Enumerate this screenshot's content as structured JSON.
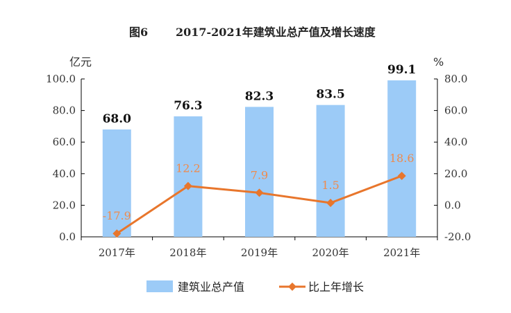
{
  "colors": {
    "bar": "#9CCBF7",
    "line": "#E8762C",
    "line_label": "#F08A4B",
    "axis": "#000000"
  },
  "chart_data": {
    "type": "bar",
    "title_fig": "图6",
    "title": "2017-2021年建筑业总产值及增长速度",
    "categories": [
      "2017年",
      "2018年",
      "2019年",
      "2020年",
      "2021年"
    ],
    "left_axis": {
      "unit": "亿元",
      "ylim": [
        0,
        100
      ],
      "ticks": [
        "100.0",
        "80.0",
        "60.0",
        "40.0",
        "20.0",
        "0.0"
      ],
      "tick_values": [
        100,
        80,
        60,
        40,
        20,
        0
      ]
    },
    "right_axis": {
      "unit": "%",
      "ylim": [
        -20,
        80
      ],
      "ticks": [
        "80.0",
        "60.0",
        "40.0",
        "20.0",
        "0.0",
        "-20.0"
      ],
      "tick_values": [
        80,
        60,
        40,
        20,
        0,
        -20
      ]
    },
    "series": [
      {
        "name": "建筑业总产值",
        "type": "bar",
        "axis": "left",
        "values": [
          68.0,
          76.3,
          82.3,
          83.5,
          99.1
        ],
        "labels": [
          "68.0",
          "76.3",
          "82.3",
          "83.5",
          "99.1"
        ]
      },
      {
        "name": "比上年增长",
        "type": "line",
        "axis": "right",
        "marker": "diamond",
        "values": [
          -17.9,
          12.2,
          7.9,
          1.5,
          18.6
        ],
        "labels": [
          "-17.9",
          "12.2",
          "7.9",
          "1.5",
          "18.6"
        ]
      }
    ],
    "grid": false,
    "legend_position": "bottom"
  }
}
